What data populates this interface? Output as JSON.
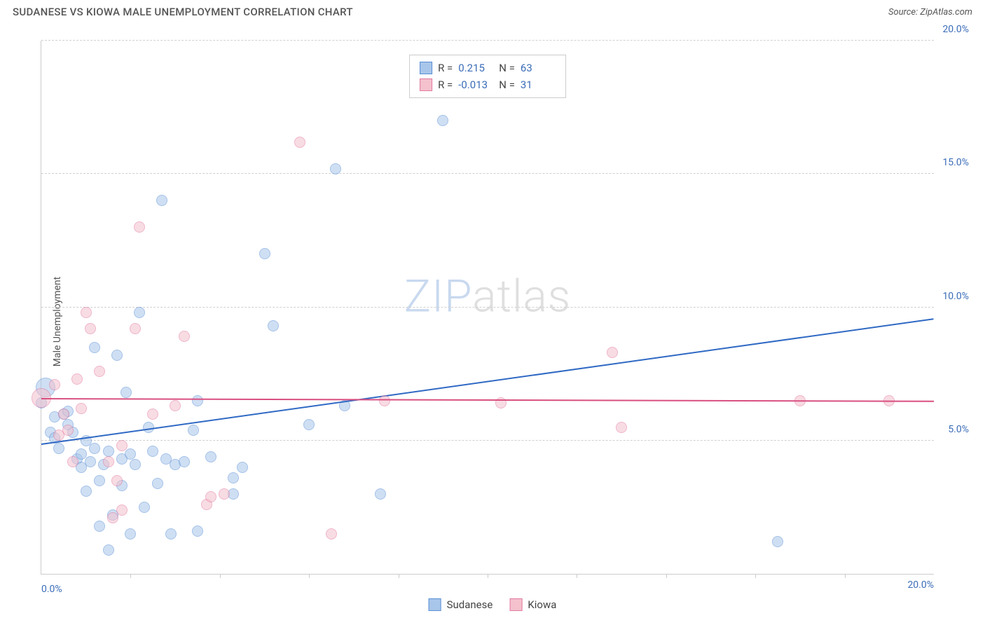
{
  "title": "SUDANESE VS KIOWA MALE UNEMPLOYMENT CORRELATION CHART",
  "source_label": "Source: ZipAtlas.com",
  "ylabel": "Male Unemployment",
  "watermark_a": "ZIP",
  "watermark_b": "atlas",
  "chart": {
    "type": "scatter",
    "xlim": [
      0,
      20
    ],
    "ylim": [
      0,
      20
    ],
    "yticks": [
      5,
      10,
      15,
      20
    ],
    "ytick_labels": [
      "5.0%",
      "10.0%",
      "15.0%",
      "20.0%"
    ],
    "xticks_major": [
      0,
      10,
      20
    ],
    "xtick_major_labels": [
      "0.0%",
      "",
      "20.0%"
    ],
    "xticks_minor": [
      2,
      4,
      6,
      8,
      10,
      12,
      14,
      16,
      18
    ],
    "background_color": "#ffffff",
    "grid_color": "#d0d0d0",
    "axis_color": "#cccccc",
    "marker_radius": 8,
    "marker_radius_large": 14,
    "series": [
      {
        "name": "Sudanese",
        "fill_color": "#a8c6ea",
        "stroke_color": "#5a8fd6",
        "fill_opacity": 0.55,
        "trend": {
          "x1": 0,
          "y1": 4.9,
          "x2": 20,
          "y2": 9.6,
          "color": "#2f69c4",
          "width": 2
        },
        "r_value": "0.215",
        "n_value": "63",
        "points": [
          [
            0.0,
            6.4
          ],
          [
            0.1,
            7.0,
            "large"
          ],
          [
            0.2,
            5.3
          ],
          [
            0.3,
            5.9
          ],
          [
            0.3,
            5.1
          ],
          [
            0.4,
            4.7
          ],
          [
            0.5,
            6.0
          ],
          [
            0.6,
            5.6
          ],
          [
            0.6,
            6.1
          ],
          [
            0.7,
            5.3
          ],
          [
            0.8,
            4.3
          ],
          [
            0.9,
            4.0
          ],
          [
            0.9,
            4.5
          ],
          [
            1.0,
            3.1
          ],
          [
            1.0,
            5.0
          ],
          [
            1.1,
            4.2
          ],
          [
            1.2,
            4.7
          ],
          [
            1.2,
            8.5
          ],
          [
            1.3,
            3.5
          ],
          [
            1.3,
            1.8
          ],
          [
            1.4,
            4.1
          ],
          [
            1.5,
            4.6
          ],
          [
            1.5,
            0.9
          ],
          [
            1.6,
            2.2
          ],
          [
            1.7,
            8.2
          ],
          [
            1.8,
            4.3
          ],
          [
            1.8,
            3.3
          ],
          [
            1.9,
            6.8
          ],
          [
            2.0,
            4.5
          ],
          [
            2.0,
            1.5
          ],
          [
            2.1,
            4.1
          ],
          [
            2.2,
            9.8
          ],
          [
            2.3,
            2.5
          ],
          [
            2.4,
            5.5
          ],
          [
            2.5,
            4.6
          ],
          [
            2.6,
            3.4
          ],
          [
            2.7,
            14.0
          ],
          [
            2.8,
            4.3
          ],
          [
            2.9,
            1.5
          ],
          [
            3.0,
            4.1
          ],
          [
            3.2,
            4.2
          ],
          [
            3.4,
            5.4
          ],
          [
            3.5,
            1.6
          ],
          [
            3.5,
            6.5
          ],
          [
            3.8,
            4.4
          ],
          [
            4.3,
            3.6
          ],
          [
            4.3,
            3.0
          ],
          [
            4.5,
            4.0
          ],
          [
            5.0,
            12.0
          ],
          [
            5.2,
            9.3
          ],
          [
            6.0,
            5.6
          ],
          [
            6.6,
            15.2
          ],
          [
            6.8,
            6.3
          ],
          [
            7.6,
            3.0
          ],
          [
            9.0,
            17.0
          ],
          [
            16.5,
            1.2
          ]
        ]
      },
      {
        "name": "Kiowa",
        "fill_color": "#f4c1cd",
        "stroke_color": "#e279a0",
        "fill_opacity": 0.55,
        "trend": {
          "x1": 0,
          "y1": 6.6,
          "x2": 20,
          "y2": 6.5,
          "color": "#d94f80",
          "width": 2
        },
        "r_value": "-0.013",
        "n_value": "31",
        "points": [
          [
            0.0,
            6.6,
            "large"
          ],
          [
            0.3,
            7.1
          ],
          [
            0.4,
            5.2
          ],
          [
            0.5,
            6.0
          ],
          [
            0.6,
            5.4
          ],
          [
            0.7,
            4.2
          ],
          [
            0.8,
            7.3
          ],
          [
            0.9,
            6.2
          ],
          [
            1.0,
            9.8
          ],
          [
            1.1,
            9.2
          ],
          [
            1.3,
            7.6
          ],
          [
            1.5,
            4.2
          ],
          [
            1.6,
            2.1
          ],
          [
            1.7,
            3.5
          ],
          [
            1.8,
            4.8
          ],
          [
            1.8,
            2.4
          ],
          [
            2.1,
            9.2
          ],
          [
            2.2,
            13.0
          ],
          [
            2.5,
            6.0
          ],
          [
            3.0,
            6.3
          ],
          [
            3.2,
            8.9
          ],
          [
            3.7,
            2.6
          ],
          [
            3.8,
            2.9
          ],
          [
            4.1,
            3.0
          ],
          [
            5.8,
            16.2
          ],
          [
            6.5,
            1.5
          ],
          [
            7.7,
            6.5
          ],
          [
            10.3,
            6.4
          ],
          [
            12.8,
            8.3
          ],
          [
            13.0,
            5.5
          ],
          [
            17.0,
            6.5
          ],
          [
            19.0,
            6.5
          ]
        ]
      }
    ]
  },
  "stats_legend": {
    "r_label": "R =",
    "n_label": "N ="
  },
  "bottom_legend": {
    "items": [
      "Sudanese",
      "Kiowa"
    ]
  }
}
